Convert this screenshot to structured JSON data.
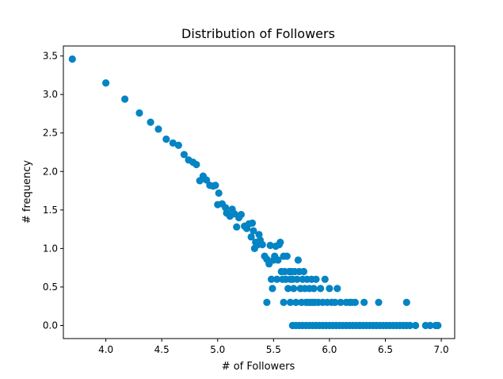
{
  "chart_data": {
    "type": "scatter",
    "title": "Distribution of Followers",
    "xlabel": "# of Followers",
    "ylabel": "# frequency",
    "xlim": [
      3.62,
      7.12
    ],
    "ylim": [
      -0.17,
      3.63
    ],
    "xticks": [
      "4.0",
      "4.5",
      "5.0",
      "5.5",
      "6.0",
      "6.5",
      "7.0"
    ],
    "yticks": [
      "0.0",
      "0.5",
      "1.0",
      "1.5",
      "2.0",
      "2.5",
      "3.0",
      "3.5"
    ],
    "grid": false,
    "marker_color": "#0484c4",
    "series": [
      {
        "points": [
          [
            3.7,
            3.46
          ],
          [
            4.0,
            3.15
          ],
          [
            4.17,
            2.94
          ],
          [
            4.3,
            2.76
          ],
          [
            4.4,
            2.64
          ],
          [
            4.47,
            2.55
          ],
          [
            4.54,
            2.42
          ],
          [
            4.6,
            2.37
          ],
          [
            4.65,
            2.34
          ],
          [
            4.7,
            2.22
          ],
          [
            4.74,
            2.15
          ],
          [
            4.78,
            2.12
          ],
          [
            4.81,
            2.09
          ],
          [
            4.84,
            1.88
          ],
          [
            4.87,
            1.94
          ],
          [
            4.9,
            1.89
          ],
          [
            4.93,
            1.82
          ],
          [
            4.96,
            1.81
          ],
          [
            4.98,
            1.82
          ],
          [
            5.01,
            1.72
          ],
          [
            5.0,
            1.57
          ],
          [
            5.04,
            1.58
          ],
          [
            5.07,
            1.53
          ],
          [
            5.08,
            1.46
          ],
          [
            5.11,
            1.42
          ],
          [
            5.13,
            1.51
          ],
          [
            5.15,
            1.45
          ],
          [
            5.17,
            1.28
          ],
          [
            5.19,
            1.4
          ],
          [
            5.21,
            1.44
          ],
          [
            5.24,
            1.29
          ],
          [
            5.26,
            1.26
          ],
          [
            5.28,
            1.32
          ],
          [
            5.3,
            1.15
          ],
          [
            5.31,
            1.33
          ],
          [
            5.32,
            1.23
          ],
          [
            5.33,
            1.0
          ],
          [
            5.34,
            1.08
          ],
          [
            5.36,
            1.05
          ],
          [
            5.37,
            1.18
          ],
          [
            5.38,
            1.11
          ],
          [
            5.4,
            1.05
          ],
          [
            5.42,
            0.9
          ],
          [
            5.44,
            0.86
          ],
          [
            5.46,
            0.8
          ],
          [
            5.47,
            1.04
          ],
          [
            5.48,
            0.6
          ],
          [
            5.49,
            0.48
          ],
          [
            5.5,
            0.85
          ],
          [
            5.51,
            0.9
          ],
          [
            5.52,
            1.03
          ],
          [
            5.53,
            0.6
          ],
          [
            5.54,
            0.85
          ],
          [
            5.55,
            1.05
          ],
          [
            5.56,
            1.08
          ],
          [
            5.57,
            0.7
          ],
          [
            5.58,
            0.6
          ],
          [
            5.59,
            0.9
          ],
          [
            5.6,
            0.7
          ],
          [
            5.61,
            0.6
          ],
          [
            5.62,
            0.9
          ],
          [
            5.63,
            0.48
          ],
          [
            5.64,
            0.7
          ],
          [
            5.65,
            0.6
          ],
          [
            5.66,
            0.7
          ],
          [
            5.67,
            0.6
          ],
          [
            5.68,
            0.48
          ],
          [
            5.69,
            0.7
          ],
          [
            5.7,
            0.3
          ],
          [
            5.71,
            0.6
          ],
          [
            5.72,
            0.85
          ],
          [
            5.73,
            0.7
          ],
          [
            5.74,
            0.48
          ],
          [
            5.75,
            0.3
          ],
          [
            5.76,
            0.6
          ],
          [
            5.77,
            0.7
          ],
          [
            5.78,
            0.48
          ],
          [
            5.79,
            0.3
          ],
          [
            5.8,
            0.6
          ],
          [
            5.81,
            0.3
          ],
          [
            5.82,
            0.48
          ],
          [
            5.83,
            0.3
          ],
          [
            5.84,
            0.6
          ],
          [
            5.85,
            0.3
          ],
          [
            5.86,
            0.48
          ],
          [
            5.87,
            0.3
          ],
          [
            5.88,
            0.6
          ],
          [
            5.9,
            0.3
          ],
          [
            5.92,
            0.48
          ],
          [
            5.94,
            0.3
          ],
          [
            5.96,
            0.6
          ],
          [
            5.98,
            0.3
          ],
          [
            6.0,
            0.48
          ],
          [
            6.02,
            0.3
          ],
          [
            6.05,
            0.3
          ],
          [
            6.07,
            0.48
          ],
          [
            6.1,
            0.3
          ],
          [
            6.15,
            0.3
          ],
          [
            6.18,
            0.3
          ],
          [
            6.2,
            0.3
          ],
          [
            6.23,
            0.3
          ],
          [
            6.31,
            0.3
          ],
          [
            6.44,
            0.3
          ],
          [
            6.69,
            0.3
          ],
          [
            5.44,
            0.3
          ],
          [
            5.59,
            0.3
          ],
          [
            5.65,
            0.3
          ],
          [
            5.67,
            0.0
          ],
          [
            5.7,
            0.0
          ],
          [
            5.73,
            0.0
          ],
          [
            5.76,
            0.0
          ],
          [
            5.79,
            0.0
          ],
          [
            5.82,
            0.0
          ],
          [
            5.85,
            0.0
          ],
          [
            5.88,
            0.0
          ],
          [
            5.91,
            0.0
          ],
          [
            5.94,
            0.0
          ],
          [
            5.97,
            0.0
          ],
          [
            6.0,
            0.0
          ],
          [
            6.03,
            0.0
          ],
          [
            6.06,
            0.0
          ],
          [
            6.09,
            0.0
          ],
          [
            6.12,
            0.0
          ],
          [
            6.15,
            0.0
          ],
          [
            6.18,
            0.0
          ],
          [
            6.21,
            0.0
          ],
          [
            6.24,
            0.0
          ],
          [
            6.27,
            0.0
          ],
          [
            6.3,
            0.0
          ],
          [
            6.33,
            0.0
          ],
          [
            6.36,
            0.0
          ],
          [
            6.39,
            0.0
          ],
          [
            6.42,
            0.0
          ],
          [
            6.45,
            0.0
          ],
          [
            6.48,
            0.0
          ],
          [
            6.51,
            0.0
          ],
          [
            6.54,
            0.0
          ],
          [
            6.57,
            0.0
          ],
          [
            6.6,
            0.0
          ],
          [
            6.63,
            0.0
          ],
          [
            6.66,
            0.0
          ],
          [
            6.69,
            0.0
          ],
          [
            6.72,
            0.0
          ],
          [
            6.77,
            0.0
          ],
          [
            6.86,
            0.0
          ],
          [
            6.9,
            0.0
          ],
          [
            6.95,
            0.0
          ],
          [
            6.97,
            0.0
          ]
        ]
      }
    ]
  }
}
